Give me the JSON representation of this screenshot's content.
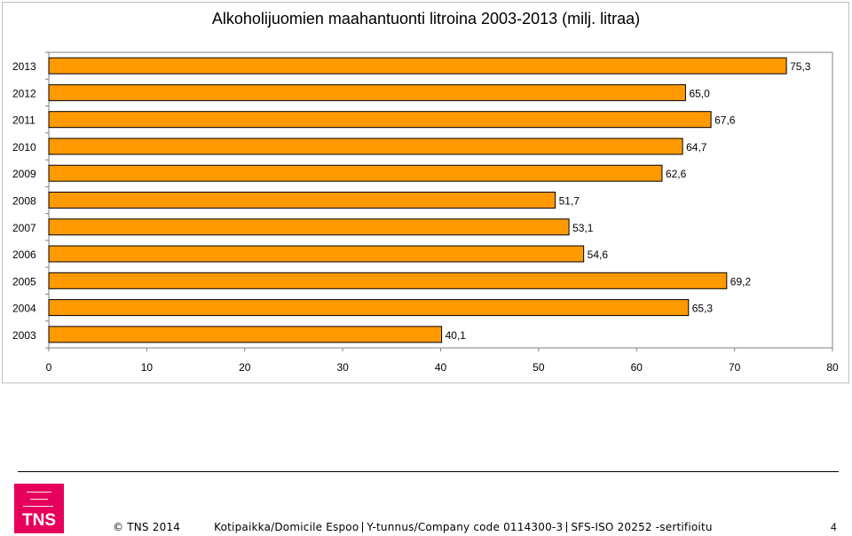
{
  "chart_data": {
    "type": "bar",
    "orientation": "horizontal",
    "title": "Alkoholijuomien maahantuonti litroina 2003-2013 (milj. litraa)",
    "xlabel": "",
    "ylabel": "",
    "categories": [
      "2003",
      "2004",
      "2005",
      "2006",
      "2007",
      "2008",
      "2009",
      "2010",
      "2011",
      "2012",
      "2013"
    ],
    "values": [
      40.1,
      65.3,
      69.2,
      54.6,
      53.1,
      51.7,
      62.6,
      64.7,
      67.6,
      65.0,
      75.3
    ],
    "value_labels": [
      "40,1",
      "65,3",
      "69,2",
      "54,6",
      "53,1",
      "51,7",
      "62,6",
      "64,7",
      "67,6",
      "65,0",
      "75,3"
    ],
    "xlim": [
      0,
      80
    ],
    "x_ticks": [
      0,
      10,
      20,
      30,
      40,
      50,
      60,
      70,
      80
    ],
    "grid": false,
    "legend": "none",
    "bar_color": "#ff9900",
    "bar_edge_color": "#000000"
  },
  "footer": {
    "logo_text": "TNS",
    "copyright": "© TNS 2014",
    "domicile": "Kotipaikka/Domicile Espoo",
    "company_code": "Y-tunnus/Company code 0114300-3",
    "certification": "SFS-ISO 20252 -sertifioitu",
    "page_number": "4"
  },
  "colors": {
    "logo_bg": "#e6005c",
    "frame_border": "#bfbfbf"
  }
}
